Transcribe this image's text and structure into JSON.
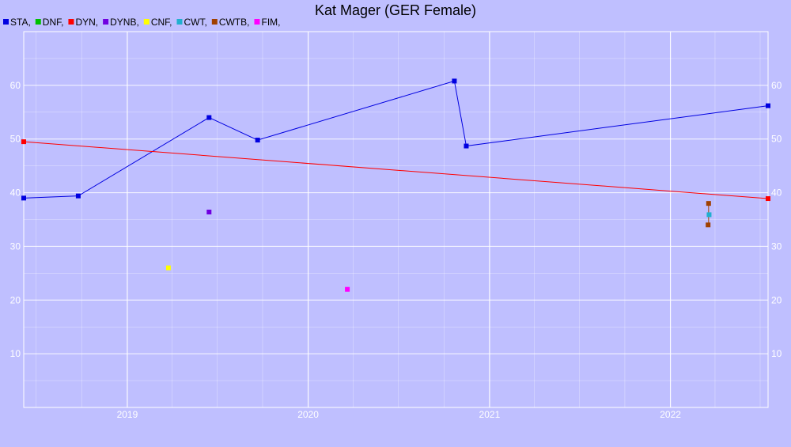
{
  "chart_data": {
    "type": "scatter",
    "title": "Kat Mager (GER Female)",
    "xlabel": "",
    "ylabel": "",
    "x_range": [
      "2018-06-06",
      "2022-07-17"
    ],
    "ylim": [
      0,
      70
    ],
    "y_ticks": [
      10,
      20,
      30,
      40,
      50,
      60
    ],
    "x_ticks": [
      "2019",
      "2020",
      "2021",
      "2022"
    ],
    "grid": true,
    "legend_position": "top-left",
    "series": [
      {
        "name": "STA",
        "color": "#0000e0",
        "line": true,
        "points": [
          {
            "x": "2018-06-06",
            "y": 39.0
          },
          {
            "x": "2018-09-24",
            "y": 39.4
          },
          {
            "x": "2019-06-15",
            "y": 54.0
          },
          {
            "x": "2019-09-21",
            "y": 49.8
          },
          {
            "x": "2020-10-22",
            "y": 60.8
          },
          {
            "x": "2020-11-15",
            "y": 48.7
          },
          {
            "x": "2022-07-17",
            "y": 56.2
          }
        ]
      },
      {
        "name": "DNF",
        "color": "#00c000",
        "line": false,
        "points": []
      },
      {
        "name": "DYN",
        "color": "#ff0000",
        "line": true,
        "points": [
          {
            "x": "2018-06-06",
            "y": 49.5
          },
          {
            "x": "2022-07-17",
            "y": 38.9
          }
        ]
      },
      {
        "name": "DYNB",
        "color": "#7000e0",
        "line": false,
        "points": [
          {
            "x": "2019-06-15",
            "y": 36.4
          }
        ]
      },
      {
        "name": "CNF",
        "color": "#ffff00",
        "line": false,
        "points": [
          {
            "x": "2019-03-25",
            "y": 26.0
          }
        ]
      },
      {
        "name": "CWT",
        "color": "#20b0d0",
        "line": false,
        "points": [
          {
            "x": "2022-03-20",
            "y": 35.9
          }
        ]
      },
      {
        "name": "CWTB",
        "color": "#a04000",
        "line": false,
        "points": [
          {
            "x": "2022-03-19",
            "y": 38.0
          },
          {
            "x": "2022-03-18",
            "y": 34.0
          }
        ]
      },
      {
        "name": "FIM",
        "color": "#ff00ff",
        "line": false,
        "points": [
          {
            "x": "2020-03-20",
            "y": 22.0
          }
        ]
      }
    ]
  }
}
